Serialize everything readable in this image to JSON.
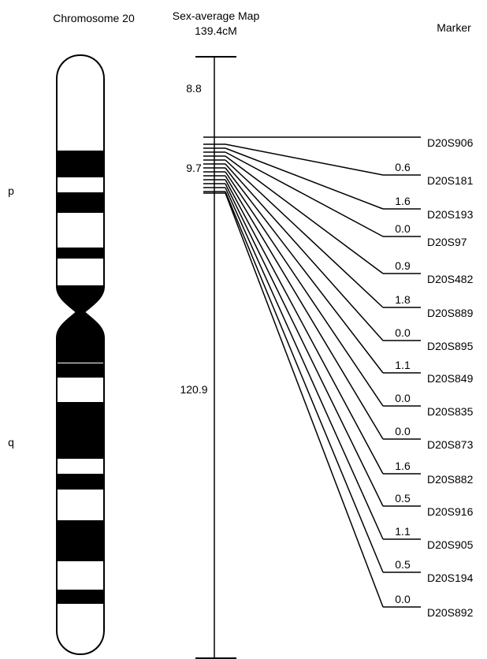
{
  "headers": {
    "chromosome": "Chromosome 20",
    "map_line1": "Sex-average Map",
    "map_line2": "139.4cM",
    "marker": "Marker"
  },
  "arms": {
    "p": "p",
    "q": "q"
  },
  "map_segments": {
    "top": "8.8",
    "cluster": "9.7",
    "bottom": "120.9"
  },
  "colors": {
    "ink": "#000000",
    "paper": "#ffffff"
  },
  "markers": [
    {
      "name": "D20S906",
      "distance": ""
    },
    {
      "name": "D20S181",
      "distance": "0.6"
    },
    {
      "name": "D20S193",
      "distance": "1.6"
    },
    {
      "name": "D20S97",
      "distance": "0.0"
    },
    {
      "name": "D20S482",
      "distance": "0.9"
    },
    {
      "name": "D20S889",
      "distance": "1.8"
    },
    {
      "name": "D20S895",
      "distance": "0.0"
    },
    {
      "name": "D20S849",
      "distance": "1.1"
    },
    {
      "name": "D20S835",
      "distance": "0.0"
    },
    {
      "name": "D20S873",
      "distance": "0.0"
    },
    {
      "name": "D20S882",
      "distance": "1.6"
    },
    {
      "name": "D20S916",
      "distance": "0.5"
    },
    {
      "name": "D20S905",
      "distance": "1.1"
    },
    {
      "name": "D20S194",
      "distance": "0.5"
    },
    {
      "name": "D20S892",
      "distance": "0.0"
    }
  ]
}
